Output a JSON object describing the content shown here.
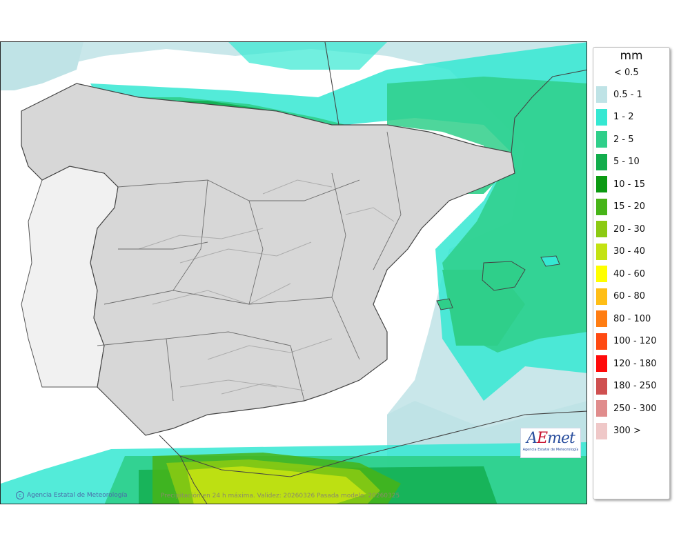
{
  "legend": {
    "unit": "mm",
    "below_label": "< 0.5",
    "items": [
      {
        "label": "0.5 - 1",
        "color": "#bfe3e6"
      },
      {
        "label": "1 - 2",
        "color": "#35e8d2"
      },
      {
        "label": "2 - 5",
        "color": "#2fcf8a"
      },
      {
        "label": "5 - 10",
        "color": "#12ad4c"
      },
      {
        "label": "10 - 15",
        "color": "#0b9a12"
      },
      {
        "label": "15 - 20",
        "color": "#47b418"
      },
      {
        "label": "20 - 30",
        "color": "#8cca12"
      },
      {
        "label": "30 - 40",
        "color": "#c3e212"
      },
      {
        "label": "40 - 60",
        "color": "#ffff00"
      },
      {
        "label": "60 - 80",
        "color": "#ffbe16"
      },
      {
        "label": "80 - 100",
        "color": "#ff7d12"
      },
      {
        "label": "100 - 120",
        "color": "#ff4a12"
      },
      {
        "label": "120 - 180",
        "color": "#ff0a0a"
      },
      {
        "label": "180 - 250",
        "color": "#cf5050"
      },
      {
        "label": "250 - 300",
        "color": "#e08c8c"
      },
      {
        "label": "300 >",
        "color": "#efc8c8"
      }
    ]
  },
  "map": {
    "credit": "Agencia Estatal de Meteorología",
    "caption": "Precipitación en 24 h máxima. Validez: 20260326 Pasada modelo: 20260325",
    "copyright_symbol": "c"
  },
  "logo": {
    "word_a": "A",
    "word_e": "E",
    "word_rest": "met",
    "subtitle": "Agencia Estatal de Meteorología"
  }
}
